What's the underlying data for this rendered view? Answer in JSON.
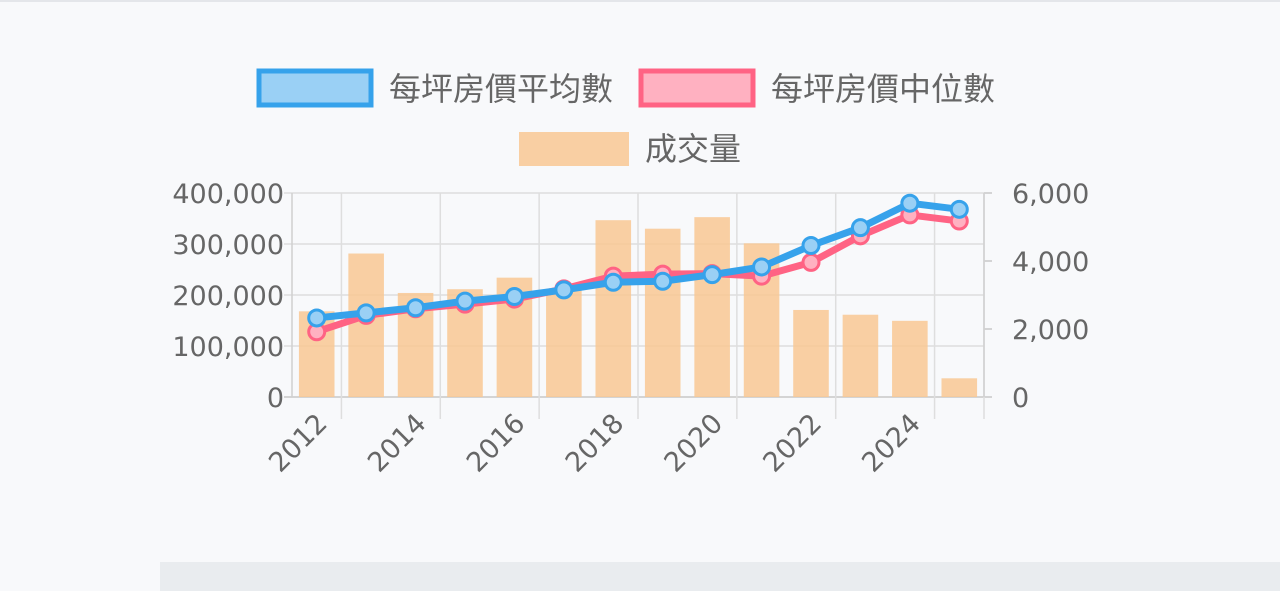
{
  "chart_data": {
    "type": "bar",
    "categories": [
      "2012",
      "2013",
      "2014",
      "2015",
      "2016",
      "2017",
      "2018",
      "2019",
      "2020",
      "2021",
      "2022",
      "2023",
      "2024",
      "2025"
    ],
    "x_tick_labels": [
      "2012",
      "2014",
      "2016",
      "2018",
      "2020",
      "2022",
      "2024"
    ],
    "series": [
      {
        "name": "每坪房價平均數",
        "type": "line",
        "axis": "left",
        "color": "#36a2eb",
        "fill": "#9ad0f5",
        "values": [
          155000,
          165000,
          175000,
          188000,
          197000,
          210000,
          225000,
          227000,
          240000,
          255000,
          297000,
          332000,
          380000,
          368000
        ]
      },
      {
        "name": "每坪房價中位數",
        "type": "line",
        "axis": "left",
        "color": "#ff6384",
        "fill": "#ffb1c1",
        "values": [
          128000,
          160000,
          173000,
          182000,
          192000,
          212000,
          237000,
          241000,
          242000,
          237000,
          264000,
          316000,
          357000,
          345000
        ]
      },
      {
        "name": "成交量",
        "type": "bar",
        "axis": "right",
        "color": "#f9c893",
        "values": [
          2520,
          4220,
          3060,
          3170,
          3510,
          3140,
          5200,
          4950,
          5290,
          4520,
          2560,
          2420,
          2240,
          550
        ]
      }
    ],
    "y_left": {
      "min": 0,
      "max": 400000,
      "ticks": [
        "0",
        "100,000",
        "200,000",
        "300,000",
        "400,000"
      ]
    },
    "y_right": {
      "min": 0,
      "max": 6000,
      "ticks": [
        "0",
        "2,000",
        "4,000",
        "6,000"
      ]
    },
    "legend_position": "top",
    "grid": true
  }
}
